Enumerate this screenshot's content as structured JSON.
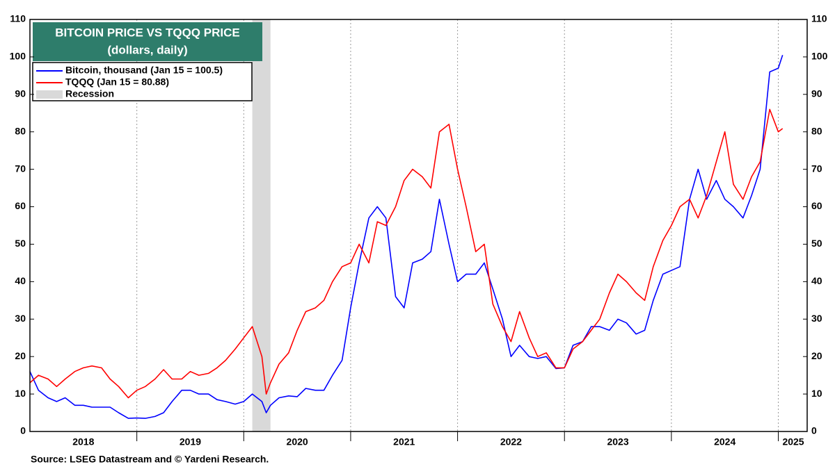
{
  "chart_data": {
    "type": "line",
    "title": "BITCOIN PRICE VS TQQQ PRICE",
    "subtitle": "(dollars, daily)",
    "source": "Source: LSEG Datastream and © Yardeni Research.",
    "x": [
      2018.0,
      2018.08,
      2018.17,
      2018.25,
      2018.33,
      2018.42,
      2018.5,
      2018.58,
      2018.67,
      2018.75,
      2018.83,
      2018.92,
      2019.0,
      2019.08,
      2019.17,
      2019.25,
      2019.33,
      2019.42,
      2019.5,
      2019.58,
      2019.67,
      2019.75,
      2019.83,
      2019.92,
      2020.0,
      2020.08,
      2020.17,
      2020.21,
      2020.25,
      2020.33,
      2020.42,
      2020.5,
      2020.58,
      2020.67,
      2020.75,
      2020.83,
      2020.92,
      2021.0,
      2021.08,
      2021.17,
      2021.25,
      2021.33,
      2021.42,
      2021.5,
      2021.58,
      2021.67,
      2021.75,
      2021.83,
      2021.92,
      2022.0,
      2022.08,
      2022.17,
      2022.25,
      2022.33,
      2022.42,
      2022.5,
      2022.58,
      2022.67,
      2022.75,
      2022.83,
      2022.92,
      2023.0,
      2023.08,
      2023.17,
      2023.25,
      2023.33,
      2023.42,
      2023.5,
      2023.58,
      2023.67,
      2023.75,
      2023.83,
      2023.92,
      2024.0,
      2024.08,
      2024.17,
      2024.25,
      2024.33,
      2024.42,
      2024.5,
      2024.58,
      2024.67,
      2024.75,
      2024.83,
      2024.92,
      2025.0,
      2025.04
    ],
    "series": [
      {
        "name": "Bitcoin, thousand (Jan 15 = 100.5)",
        "color": "#0000ff",
        "values": [
          16,
          11,
          9,
          8,
          9,
          7,
          7,
          6.5,
          6.5,
          6.5,
          5,
          3.5,
          3.6,
          3.5,
          4,
          5,
          8,
          11,
          11,
          10,
          10,
          8.5,
          8,
          7.3,
          8,
          10,
          8,
          5,
          7,
          9,
          9.5,
          9.3,
          11.5,
          11,
          11,
          15,
          19,
          33,
          45,
          57,
          60,
          57,
          36,
          33,
          45,
          46,
          48,
          62,
          50,
          40,
          42,
          42,
          45,
          38,
          30,
          20,
          23,
          20,
          19.5,
          20,
          16.8,
          17,
          23,
          24,
          28,
          28,
          27,
          30,
          29,
          26,
          27,
          35,
          42,
          43,
          44,
          62,
          70,
          62,
          67,
          62,
          60,
          57,
          63,
          70,
          96,
          97,
          100.5
        ]
      },
      {
        "name": "TQQQ (Jan 15 = 80.88)",
        "color": "#ff0000",
        "values": [
          13,
          15,
          14,
          12,
          14,
          16,
          17,
          17.5,
          17,
          14,
          12,
          9,
          11,
          12,
          14,
          16.5,
          14,
          14,
          16,
          15,
          15.5,
          17,
          19,
          22,
          25,
          28,
          20,
          10,
          13,
          18,
          21,
          27,
          32,
          33,
          35,
          40,
          44,
          45,
          50,
          45,
          56,
          55,
          60,
          67,
          70,
          68,
          65,
          80,
          82,
          70,
          60,
          48,
          50,
          34,
          28,
          24,
          32,
          25,
          20,
          21,
          17,
          17,
          22,
          24,
          27,
          30,
          37,
          42,
          40,
          37,
          35,
          44,
          51,
          55,
          60,
          62,
          57,
          63,
          72,
          80,
          66,
          62,
          68,
          72,
          86,
          80,
          80.88
        ]
      }
    ],
    "recession": {
      "name": "Recession",
      "color": "#d9d9d9",
      "x": [
        2020.08,
        2020.25
      ]
    },
    "xlim": [
      2018.0,
      2025.27
    ],
    "xticks": [
      {
        "value": 2018.5,
        "label": "2018"
      },
      {
        "value": 2019.5,
        "label": "2019"
      },
      {
        "value": 2020.5,
        "label": "2020"
      },
      {
        "value": 2021.5,
        "label": "2021"
      },
      {
        "value": 2022.5,
        "label": "2022"
      },
      {
        "value": 2023.5,
        "label": "2023"
      },
      {
        "value": 2024.5,
        "label": "2024"
      },
      {
        "value": 2025.14,
        "label": "2025"
      }
    ],
    "xgrid": [
      2019,
      2020,
      2021,
      2022,
      2023,
      2024,
      2025
    ],
    "ylim": [
      0,
      110
    ],
    "yticks": [
      0,
      10,
      20,
      30,
      40,
      50,
      60,
      70,
      80,
      90,
      100,
      110
    ],
    "y2lim": [
      0,
      110
    ],
    "y2ticks": [
      0,
      10,
      20,
      30,
      40,
      50,
      60,
      70,
      80,
      90,
      100,
      110
    ]
  }
}
